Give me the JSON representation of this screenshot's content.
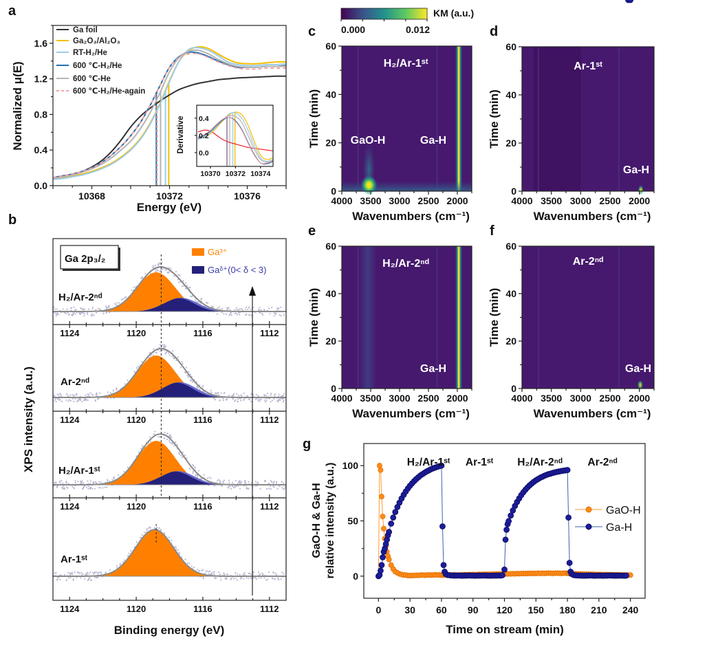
{
  "panel_labels": [
    "a",
    "b",
    "c",
    "d",
    "e",
    "f",
    "g"
  ],
  "colorbar": {
    "label": "KM (a.u.)",
    "min": 0,
    "max": 0.012,
    "ticks": [
      "0.000",
      "0.012"
    ],
    "colormap": "viridis"
  },
  "chart_data": [
    {
      "panel": "a",
      "type": "line",
      "xlabel": "Energy (eV)",
      "ylabel": "Normalized μ(E)",
      "xlim": [
        10366,
        10378
      ],
      "ylim": [
        0,
        1.8
      ],
      "xticks": [
        "10368",
        "10372",
        "10376"
      ],
      "yticks": [
        "0.0",
        "0.4",
        "0.8",
        "1.2",
        "1.6"
      ],
      "legend": "top-left",
      "x": [
        10366,
        10366.5,
        10367,
        10367.5,
        10368,
        10368.5,
        10369,
        10369.5,
        10370,
        10370.5,
        10371,
        10371.5,
        10372,
        10372.5,
        10373,
        10373.5,
        10374,
        10374.5,
        10375,
        10375.5,
        10376,
        10376.5,
        10377,
        10377.5,
        10378
      ],
      "series": [
        {
          "name": "Ga foil",
          "color": "#333333",
          "dash": false,
          "values": [
            0.09,
            0.11,
            0.13,
            0.16,
            0.21,
            0.28,
            0.38,
            0.51,
            0.66,
            0.78,
            0.87,
            0.95,
            1.02,
            1.08,
            1.12,
            1.15,
            1.17,
            1.19,
            1.2,
            1.21,
            1.215,
            1.22,
            1.225,
            1.23,
            1.23
          ]
        },
        {
          "name": "Ga₂O₃/Al₂O₃",
          "color": "#f5bd00",
          "dash": false,
          "e0": 10371.96,
          "values": [
            0.08,
            0.09,
            0.11,
            0.13,
            0.16,
            0.2,
            0.25,
            0.32,
            0.41,
            0.53,
            0.7,
            0.92,
            1.18,
            1.4,
            1.52,
            1.56,
            1.54,
            1.48,
            1.42,
            1.38,
            1.37,
            1.37,
            1.38,
            1.39,
            1.39
          ]
        },
        {
          "name": "RT-H₂/He",
          "color": "#9ccbe8",
          "dash": false,
          "e0": 10371.79,
          "values": [
            0.07,
            0.08,
            0.1,
            0.12,
            0.15,
            0.19,
            0.24,
            0.31,
            0.4,
            0.52,
            0.69,
            0.91,
            1.17,
            1.4,
            1.53,
            1.55,
            1.52,
            1.46,
            1.39,
            1.36,
            1.35,
            1.35,
            1.36,
            1.36,
            1.37
          ]
        },
        {
          "name": "600 ℃-H₂/He",
          "color": "#1f6fb2",
          "dash": false,
          "e0": 10371.32,
          "values": [
            0.09,
            0.11,
            0.13,
            0.16,
            0.2,
            0.26,
            0.34,
            0.44,
            0.56,
            0.71,
            0.9,
            1.12,
            1.33,
            1.45,
            1.5,
            1.49,
            1.45,
            1.4,
            1.36,
            1.33,
            1.33,
            1.33,
            1.34,
            1.34,
            1.35
          ]
        },
        {
          "name": "600 ℃-He",
          "color": "#b4b4b4",
          "dash": false,
          "e0": 10371.54,
          "values": [
            0.08,
            0.1,
            0.12,
            0.15,
            0.19,
            0.24,
            0.31,
            0.4,
            0.5,
            0.64,
            0.82,
            1.04,
            1.28,
            1.44,
            1.51,
            1.52,
            1.48,
            1.42,
            1.37,
            1.34,
            1.33,
            1.33,
            1.34,
            1.34,
            1.34
          ]
        },
        {
          "name": "600 ℃-H₂/He-again",
          "color": "#f4a0a0",
          "dash": true,
          "e0": 10371.36,
          "values": [
            0.09,
            0.11,
            0.13,
            0.16,
            0.2,
            0.26,
            0.34,
            0.44,
            0.56,
            0.71,
            0.9,
            1.12,
            1.33,
            1.44,
            1.48,
            1.48,
            1.44,
            1.39,
            1.35,
            1.32,
            1.31,
            1.31,
            1.32,
            1.32,
            1.32
          ]
        }
      ]
    },
    {
      "panel": "a-inset",
      "type": "line",
      "xlabel": "",
      "ylabel": "Derivative",
      "xlim": [
        10368.9,
        10375
      ],
      "ylim": [
        -0.16,
        0.55
      ],
      "xticks": [
        "10370",
        "10372",
        "10374"
      ],
      "yticks": [
        "0.0",
        "0.2",
        "0.4"
      ],
      "x": [
        10369,
        10369.5,
        10370,
        10370.5,
        10371,
        10371.5,
        10372,
        10372.5,
        10373,
        10373.5,
        10374,
        10374.5,
        10375
      ],
      "series": [
        {
          "color": "#e8202a",
          "values": [
            0.24,
            0.26,
            0.25,
            0.2,
            0.15,
            0.12,
            0.1,
            0.08,
            0.06,
            0.05,
            0.04,
            0.03,
            0.02
          ]
        },
        {
          "color": "#f5bd00",
          "e0": 10371.96,
          "values": [
            0.15,
            0.18,
            0.22,
            0.29,
            0.37,
            0.44,
            0.47,
            0.44,
            0.32,
            0.13,
            -0.03,
            -0.08,
            -0.06
          ]
        },
        {
          "color": "#9ccbe8",
          "e0": 10371.79,
          "values": [
            0.15,
            0.18,
            0.23,
            0.3,
            0.38,
            0.45,
            0.46,
            0.4,
            0.26,
            0.08,
            -0.06,
            -0.1,
            -0.08
          ]
        },
        {
          "color": "#b4b4b4",
          "e0": 10371.54,
          "values": [
            0.16,
            0.19,
            0.24,
            0.31,
            0.38,
            0.43,
            0.42,
            0.35,
            0.2,
            0.04,
            -0.08,
            -0.11,
            -0.09
          ]
        },
        {
          "color": "#1f6fb2",
          "e0": 10371.32,
          "values": [
            0.17,
            0.2,
            0.25,
            0.32,
            0.38,
            0.41,
            0.37,
            0.27,
            0.12,
            -0.02,
            -0.12,
            -0.13,
            -0.1
          ]
        },
        {
          "color": "#f4a0a0",
          "e0": 10371.36,
          "values": [
            0.18,
            0.21,
            0.26,
            0.33,
            0.39,
            0.41,
            0.36,
            0.26,
            0.11,
            -0.03,
            -0.12,
            -0.12,
            -0.09
          ]
        }
      ]
    },
    {
      "panel": "b",
      "type": "area",
      "xlabel": "Binding energy (eV)",
      "ylabel": "XPS intensity (a.u.)",
      "xlim": [
        1125,
        1111
      ],
      "xticks": [
        "1124",
        "1120",
        "1116",
        "1112"
      ],
      "title": "Ga 2p₃/₂",
      "legend": [
        {
          "name": "Ga³⁺",
          "color": "#ff8000"
        },
        {
          "name": "Gaᵟ⁺(0< δ < 3)",
          "color": "#24207a"
        }
      ],
      "subpanels": [
        {
          "label": "H₂/Ar-2ⁿᵈ",
          "ga3_center": 1118.8,
          "ga3_height": 1.0,
          "gad_center": 1117.3,
          "gad_height": 0.35,
          "peak_marker": 1118.5
        },
        {
          "label": "Ar-2ⁿᵈ",
          "ga3_center": 1118.8,
          "ga3_height": 1.07,
          "gad_center": 1117.4,
          "gad_height": 0.39,
          "peak_marker": 1118.5
        },
        {
          "label": "H₂/Ar-1ˢᵗ",
          "ga3_center": 1118.8,
          "ga3_height": 1.12,
          "gad_center": 1117.5,
          "gad_height": 0.35,
          "peak_marker": 1118.5
        },
        {
          "label": "Ar-1ˢᵗ",
          "ga3_center": 1118.9,
          "ga3_height": 1.19,
          "gad_center": 1117.5,
          "gad_height": 0,
          "peak_marker": 1118.8
        }
      ]
    },
    {
      "panel": "c",
      "type": "heatmap",
      "xlabel": "Wavenumbers (cm⁻¹)",
      "ylabel": "Time (min)",
      "xlim": [
        4000,
        1750
      ],
      "ylim": [
        0,
        60
      ],
      "xticks": [
        "4000",
        "3500",
        "3000",
        "2500",
        "2000"
      ],
      "yticks": [
        "0",
        "20",
        "40",
        "60"
      ],
      "annotations": [
        "H₂/Ar-1ˢᵗ",
        "GaO-H",
        "Ga-H"
      ],
      "bands": [
        {
          "label": "Ga-H",
          "wavenumber": 1975,
          "time_range": [
            0,
            60
          ],
          "intensity": 0.012
        }
      ],
      "hotspots": [
        {
          "label": "GaO-H",
          "wavenumber": 3530,
          "time": 2.5,
          "intensity": 0.012
        }
      ]
    },
    {
      "panel": "d",
      "type": "heatmap",
      "xlabel": "Wavenumbers (cm⁻¹)",
      "ylabel": "Time (min)",
      "xlim": [
        4000,
        1750
      ],
      "ylim": [
        0,
        60
      ],
      "xticks": [
        "4000",
        "3500",
        "3000",
        "2500",
        "2000"
      ],
      "yticks": [
        "0",
        "20",
        "40",
        "60"
      ],
      "annotations": [
        "Ar-1ˢᵗ",
        "Ga-H"
      ],
      "bands": [],
      "hotspots": [
        {
          "label": "Ga-H",
          "wavenumber": 1975,
          "time": 0.5,
          "intensity": 0.006
        }
      ]
    },
    {
      "panel": "e",
      "type": "heatmap",
      "xlabel": "Wavenumbers (cm⁻¹)",
      "ylabel": "Time (min)",
      "xlim": [
        4000,
        1750
      ],
      "ylim": [
        0,
        60
      ],
      "xticks": [
        "4000",
        "3500",
        "3000",
        "2500",
        "2000"
      ],
      "yticks": [
        "0",
        "20",
        "40",
        "60"
      ],
      "annotations": [
        "H₂/Ar-2ⁿᵈ",
        "Ga-H"
      ],
      "bands": [
        {
          "label": "Ga-H",
          "wavenumber": 1975,
          "time_range": [
            0,
            60
          ],
          "intensity": 0.012
        }
      ],
      "hotspots": []
    },
    {
      "panel": "f",
      "type": "heatmap",
      "xlabel": "Wavenumbers (cm⁻¹)",
      "ylabel": "Time (min)",
      "xlim": [
        4000,
        1750
      ],
      "ylim": [
        0,
        60
      ],
      "xticks": [
        "4000",
        "3500",
        "3000",
        "2500",
        "2000"
      ],
      "yticks": [
        "0",
        "20",
        "40",
        "60"
      ],
      "annotations": [
        "Ar-2ⁿᵈ",
        "Ga-H"
      ],
      "bands": [],
      "hotspots": [
        {
          "label": "Ga-H",
          "wavenumber": 1985,
          "time": 1.5,
          "intensity": 0.007
        }
      ]
    },
    {
      "panel": "g",
      "type": "scatter",
      "xlabel": "Time on stream (min)",
      "ylabel": [
        "GaO-H & Ga-H",
        "relative intensity (a.u.)"
      ],
      "xlim": [
        -14,
        254
      ],
      "ylim": [
        -20,
        120
      ],
      "xticks": [
        "0",
        "30",
        "60",
        "90",
        "120",
        "150",
        "180",
        "210",
        "240"
      ],
      "yticks": [
        "0",
        "50",
        "100"
      ],
      "legend": "right",
      "phases": [
        "H₂/Ar-1ˢᵗ",
        "Ar-1ˢᵗ",
        "H₂/Ar-2ⁿᵈ",
        "Ar-2ⁿᵈ"
      ],
      "x": [
        0,
        1,
        2,
        3,
        4,
        5,
        6,
        7,
        8,
        9,
        10,
        12,
        14,
        16,
        18,
        20,
        22,
        24,
        26,
        28,
        30,
        32,
        34,
        36,
        38,
        40,
        42,
        44,
        46,
        48,
        50,
        52,
        54,
        56,
        58,
        60,
        61,
        62,
        63,
        64,
        66,
        68,
        70,
        72,
        74,
        76,
        78,
        80,
        82,
        84,
        86,
        88,
        90,
        92,
        94,
        96,
        98,
        100,
        102,
        104,
        106,
        108,
        110,
        112,
        114,
        116,
        118,
        120,
        121,
        122,
        123,
        124,
        126,
        128,
        130,
        132,
        134,
        136,
        138,
        140,
        142,
        144,
        146,
        148,
        150,
        152,
        154,
        156,
        158,
        160,
        162,
        164,
        166,
        168,
        170,
        172,
        174,
        176,
        178,
        180,
        181,
        182,
        183,
        184,
        186,
        188,
        190,
        192,
        194,
        196,
        198,
        200,
        202,
        204,
        206,
        208,
        210,
        212,
        214,
        216,
        218,
        220,
        222,
        224,
        226,
        228,
        230,
        232,
        234,
        236,
        238,
        240
      ],
      "series": [
        {
          "name": "GaO-H",
          "color": "#ff8c1a",
          "values": [
            0,
            100,
            96,
            72,
            54,
            43,
            34,
            27,
            22,
            18,
            15,
            10,
            6.5,
            4,
            3,
            2,
            1.5,
            1,
            1,
            0.5,
            0.5,
            0.5,
            0.6,
            0.8,
            0.7,
            0.9,
            1,
            0.8,
            1,
            1.1,
            0.9,
            1,
            1.2,
            1,
            1.1,
            1,
            1,
            1,
            1,
            1,
            1.1,
            0.9,
            1,
            1.2,
            1,
            1,
            1.1,
            1.2,
            1.3,
            1.2,
            1.4,
            1.3,
            1.5,
            1.4,
            1.5,
            1.6,
            1.5,
            1.6,
            1.7,
            1.6,
            1.8,
            1.7,
            1.8,
            1.9,
            1.8,
            2,
            1.9,
            2,
            2,
            2.1,
            2,
            2.1,
            2,
            2.2,
            2.1,
            2.3,
            2.2,
            2.3,
            2.4,
            2.3,
            2.4,
            2.5,
            2.4,
            2.5,
            2.4,
            2.6,
            2.5,
            2.6,
            2.5,
            2.6,
            2.7,
            2.6,
            2.5,
            2.6,
            2.7,
            2.6,
            2.5,
            2.6,
            2.7,
            2.6,
            2.5,
            2.4,
            2.3,
            2.2,
            2.1,
            2,
            2,
            1.9,
            1.9,
            1.8,
            1.8,
            1.7,
            1.7,
            1.6,
            1.6,
            1.5,
            1.5,
            1.5,
            1.4,
            1.4,
            1.3,
            1.3,
            1.3,
            1.2,
            1.2,
            1.2,
            1.1,
            1.1,
            1.1,
            1,
            1,
            1
          ]
        },
        {
          "name": "Ga-H",
          "color": "#1c1c9a",
          "values": [
            0,
            1,
            5,
            10,
            17,
            22,
            25,
            29,
            33,
            37,
            40,
            47.5,
            53,
            58,
            62.5,
            66.5,
            70.2,
            73.6,
            76.6,
            79.3,
            81.8,
            84,
            86,
            87.9,
            89.5,
            91.1,
            92.4,
            93.6,
            94.8,
            95.7,
            96.7,
            97.5,
            98.2,
            98.9,
            99.5,
            100,
            45,
            10,
            4,
            2,
            1,
            0.8,
            0.6,
            0.5,
            0.5,
            0.6,
            0.5,
            0.4,
            0.5,
            0.5,
            0.6,
            0.5,
            0.5,
            0.4,
            0.5,
            0.5,
            0.5,
            0.6,
            0.5,
            0.5,
            0.4,
            0.5,
            0.5,
            0.5,
            0.6,
            0.5,
            0.8,
            6,
            33,
            42,
            47,
            49.8,
            54.8,
            59.4,
            63.5,
            67.1,
            70.3,
            73.3,
            75.9,
            78.2,
            80.3,
            82.2,
            83.8,
            85.4,
            86.7,
            87.9,
            89,
            89.9,
            90.8,
            91.6,
            92.3,
            92.8,
            93.4,
            93.9,
            94.3,
            94.7,
            95.1,
            95.4,
            95.7,
            96,
            53,
            12,
            4,
            2,
            1,
            0.7,
            0.6,
            0.5,
            0.5,
            0.4,
            0.5,
            0.5,
            0.6,
            0.5,
            0.4,
            0.5,
            0.5,
            0.5,
            0.4,
            0.5,
            0.5,
            0.6,
            0.5,
            0.5,
            0.4,
            0.5,
            0.5,
            0.5,
            0.4,
            0.5
          ]
        }
      ]
    }
  ]
}
